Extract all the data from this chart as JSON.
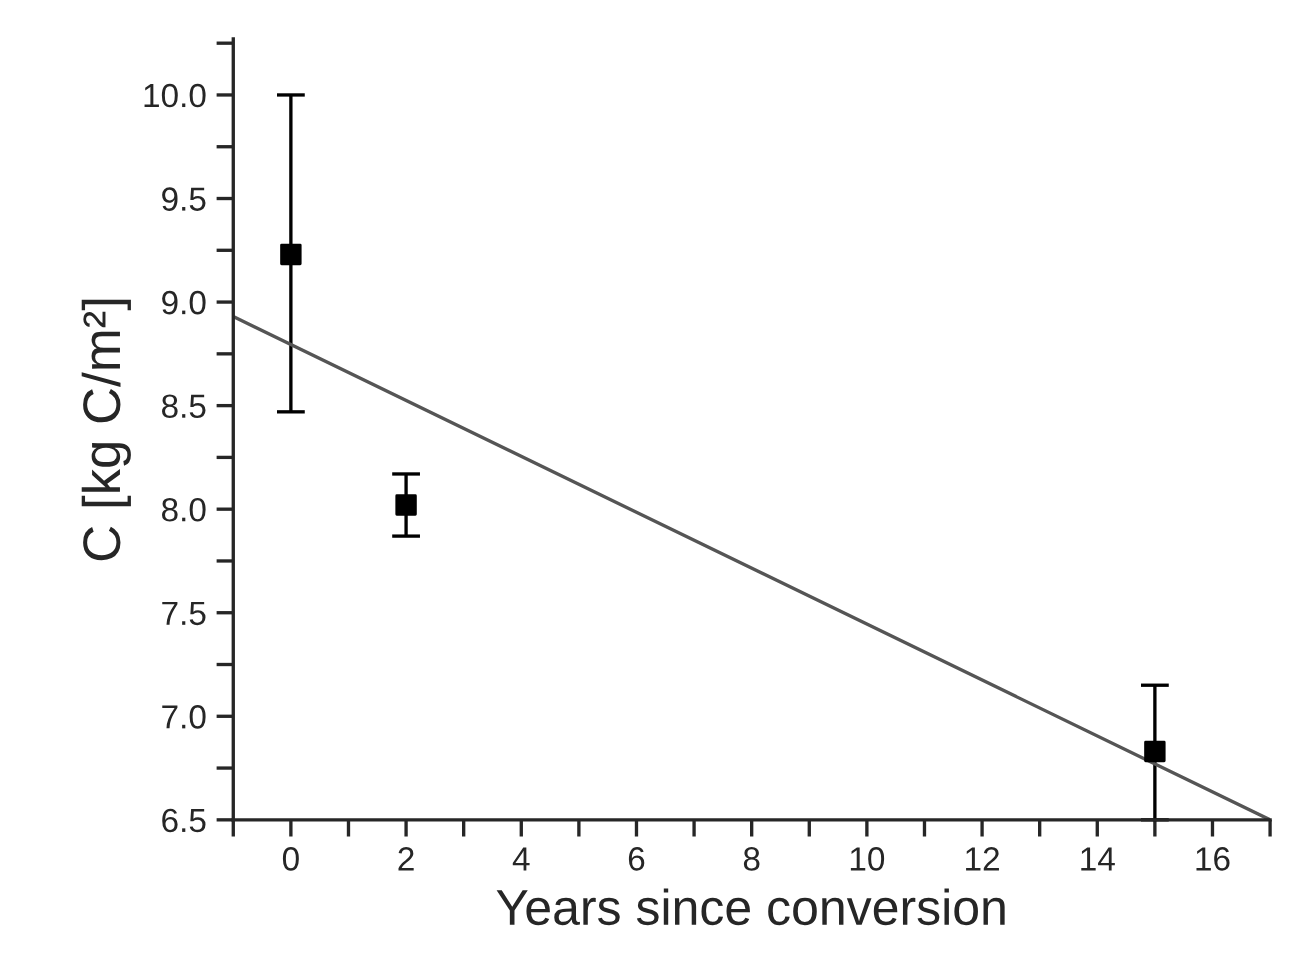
{
  "chart_data": {
    "type": "scatter",
    "xlabel": "Years since conversion",
    "ylabel": "C [kg C/m²]",
    "xlim": [
      -1,
      17
    ],
    "ylim": [
      6.5,
      10.27
    ],
    "xticks": [
      {
        "value": -1,
        "label": null
      },
      0,
      {
        "value": 1,
        "label": null
      },
      2,
      {
        "value": 3,
        "label": null
      },
      4,
      {
        "value": 5,
        "label": null
      },
      6,
      {
        "value": 7,
        "label": null
      },
      8,
      {
        "value": 9,
        "label": null
      },
      10,
      {
        "value": 11,
        "label": null
      },
      12,
      {
        "value": 13,
        "label": null
      },
      14,
      {
        "value": 15,
        "label": null
      },
      16,
      {
        "value": 17,
        "label": null
      }
    ],
    "yticks": [
      6.5,
      {
        "value": 6.75,
        "label": null
      },
      {
        "value": 7,
        "label": "7.0"
      },
      {
        "value": 7.25,
        "label": null
      },
      7.5,
      {
        "value": 7.75,
        "label": null
      },
      {
        "value": 8,
        "label": "8.0"
      },
      {
        "value": 8.25,
        "label": null
      },
      8.5,
      {
        "value": 8.75,
        "label": null
      },
      {
        "value": 9,
        "label": "9.0"
      },
      {
        "value": 9.25,
        "label": null
      },
      9.5,
      {
        "value": 9.75,
        "label": null
      },
      {
        "value": 10,
        "label": "10.0"
      },
      {
        "value": 10.25,
        "label": null
      }
    ],
    "grid": false,
    "marker": "square",
    "series": [
      {
        "color": "#000000",
        "x": [
          0,
          2,
          15
        ],
        "values": [
          9.23,
          8.02,
          6.83
        ],
        "errors": [
          [
            8.47,
            10.0
          ],
          [
            7.87,
            8.17
          ],
          [
            6.5,
            7.15
          ]
        ]
      },
      {
        "type": "line",
        "color": "#555555",
        "x": [
          -1,
          17
        ],
        "values": [
          8.93,
          6.5
        ],
        "line_style": "solid",
        "marker": "none"
      }
    ]
  }
}
